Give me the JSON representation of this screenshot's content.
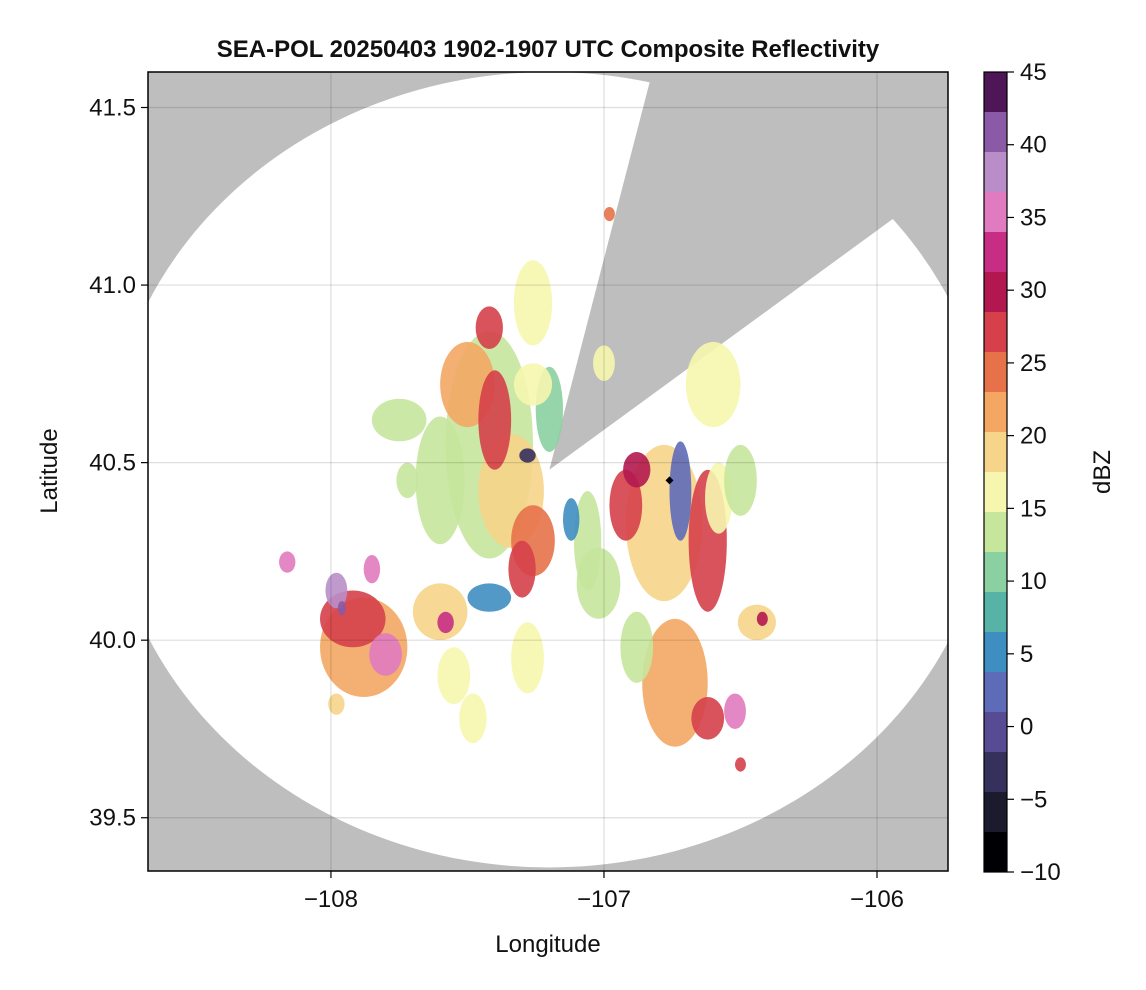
{
  "chart_data": {
    "type": "heatmap",
    "title": "SEA-POL 20250403 1902-1907 UTC Composite Reflectivity",
    "xlabel": "Longitude",
    "ylabel": "Latitude",
    "xlim": [
      -108.67,
      -105.74
    ],
    "ylim": [
      39.35,
      41.6
    ],
    "x_ticks": [
      -108,
      -107,
      -106
    ],
    "x_tick_labels": [
      "−108",
      "−107",
      "−106"
    ],
    "y_ticks": [
      39.5,
      40.0,
      40.5,
      41.0,
      41.5
    ],
    "y_tick_labels": [
      "39.5",
      "40.0",
      "40.5",
      "41.0",
      "41.5"
    ],
    "grid": true,
    "radar": {
      "center": [
        -107.2,
        40.48
      ],
      "range_lat_deg": 1.12,
      "range_lon_deg": 1.62,
      "blocked_sector_from": [
        -106.85,
        41.52
      ],
      "blocked_sector_to": [
        -106.06,
        41.12
      ],
      "marker": [
        -106.76,
        40.45
      ]
    },
    "echo_cells": [
      {
        "lon": -107.42,
        "lat": 40.55,
        "rx": 0.16,
        "ry": 0.32,
        "dbz": 14
      },
      {
        "lon": -107.34,
        "lat": 40.42,
        "rx": 0.12,
        "ry": 0.16,
        "dbz": 18
      },
      {
        "lon": -107.5,
        "lat": 40.72,
        "rx": 0.1,
        "ry": 0.12,
        "dbz": 22
      },
      {
        "lon": -107.4,
        "lat": 40.62,
        "rx": 0.06,
        "ry": 0.14,
        "dbz": 26
      },
      {
        "lon": -107.26,
        "lat": 40.28,
        "rx": 0.08,
        "ry": 0.1,
        "dbz": 24
      },
      {
        "lon": -107.42,
        "lat": 40.12,
        "rx": 0.08,
        "ry": 0.04,
        "dbz": 6
      },
      {
        "lon": -107.3,
        "lat": 40.2,
        "rx": 0.05,
        "ry": 0.08,
        "dbz": 28
      },
      {
        "lon": -107.26,
        "lat": 40.95,
        "rx": 0.07,
        "ry": 0.12,
        "dbz": 15
      },
      {
        "lon": -107.42,
        "lat": 40.88,
        "rx": 0.05,
        "ry": 0.06,
        "dbz": 27
      },
      {
        "lon": -107.6,
        "lat": 40.45,
        "rx": 0.09,
        "ry": 0.18,
        "dbz": 13
      },
      {
        "lon": -107.75,
        "lat": 40.62,
        "rx": 0.1,
        "ry": 0.06,
        "dbz": 12
      },
      {
        "lon": -107.2,
        "lat": 40.65,
        "rx": 0.05,
        "ry": 0.12,
        "dbz": 11
      },
      {
        "lon": -106.78,
        "lat": 40.33,
        "rx": 0.14,
        "ry": 0.22,
        "dbz": 18
      },
      {
        "lon": -106.62,
        "lat": 40.28,
        "rx": 0.07,
        "ry": 0.2,
        "dbz": 26
      },
      {
        "lon": -106.92,
        "lat": 40.38,
        "rx": 0.06,
        "ry": 0.1,
        "dbz": 27
      },
      {
        "lon": -106.88,
        "lat": 40.48,
        "rx": 0.05,
        "ry": 0.05,
        "dbz": 29
      },
      {
        "lon": -106.58,
        "lat": 40.4,
        "rx": 0.05,
        "ry": 0.1,
        "dbz": 16
      },
      {
        "lon": -106.5,
        "lat": 40.45,
        "rx": 0.06,
        "ry": 0.1,
        "dbz": 14
      },
      {
        "lon": -107.06,
        "lat": 40.28,
        "rx": 0.05,
        "ry": 0.14,
        "dbz": 12
      },
      {
        "lon": -107.02,
        "lat": 40.16,
        "rx": 0.08,
        "ry": 0.1,
        "dbz": 13
      },
      {
        "lon": -106.72,
        "lat": 40.42,
        "rx": 0.04,
        "ry": 0.14,
        "dbz": 1
      },
      {
        "lon": -107.12,
        "lat": 40.34,
        "rx": 0.03,
        "ry": 0.06,
        "dbz": 5
      },
      {
        "lon": -107.28,
        "lat": 40.52,
        "rx": 0.03,
        "ry": 0.02,
        "dbz": -3
      },
      {
        "lon": -107.0,
        "lat": 40.78,
        "rx": 0.04,
        "ry": 0.05,
        "dbz": 16
      },
      {
        "lon": -106.74,
        "lat": 39.88,
        "rx": 0.12,
        "ry": 0.18,
        "dbz": 22
      },
      {
        "lon": -106.62,
        "lat": 39.78,
        "rx": 0.06,
        "ry": 0.06,
        "dbz": 26
      },
      {
        "lon": -106.88,
        "lat": 39.98,
        "rx": 0.06,
        "ry": 0.1,
        "dbz": 14
      },
      {
        "lon": -106.52,
        "lat": 39.8,
        "rx": 0.04,
        "ry": 0.05,
        "dbz": 34
      },
      {
        "lon": -106.5,
        "lat": 39.65,
        "rx": 0.02,
        "ry": 0.02,
        "dbz": 26
      },
      {
        "lon": -106.44,
        "lat": 40.05,
        "rx": 0.07,
        "ry": 0.05,
        "dbz": 20
      },
      {
        "lon": -106.42,
        "lat": 40.06,
        "rx": 0.02,
        "ry": 0.02,
        "dbz": 30
      },
      {
        "lon": -106.6,
        "lat": 40.72,
        "rx": 0.1,
        "ry": 0.12,
        "dbz": 15
      },
      {
        "lon": -107.88,
        "lat": 39.98,
        "rx": 0.16,
        "ry": 0.14,
        "dbz": 22
      },
      {
        "lon": -107.92,
        "lat": 40.06,
        "rx": 0.12,
        "ry": 0.08,
        "dbz": 27
      },
      {
        "lon": -107.8,
        "lat": 39.96,
        "rx": 0.06,
        "ry": 0.06,
        "dbz": 34
      },
      {
        "lon": -107.98,
        "lat": 40.14,
        "rx": 0.04,
        "ry": 0.05,
        "dbz": 38
      },
      {
        "lon": -107.85,
        "lat": 40.2,
        "rx": 0.03,
        "ry": 0.04,
        "dbz": 34
      },
      {
        "lon": -108.16,
        "lat": 40.22,
        "rx": 0.03,
        "ry": 0.03,
        "dbz": 34
      },
      {
        "lon": -107.96,
        "lat": 40.09,
        "rx": 0.015,
        "ry": 0.02,
        "dbz": 40
      },
      {
        "lon": -107.6,
        "lat": 40.08,
        "rx": 0.1,
        "ry": 0.08,
        "dbz": 19
      },
      {
        "lon": -107.58,
        "lat": 40.05,
        "rx": 0.03,
        "ry": 0.03,
        "dbz": 32
      },
      {
        "lon": -107.55,
        "lat": 39.9,
        "rx": 0.06,
        "ry": 0.08,
        "dbz": 16
      },
      {
        "lon": -107.48,
        "lat": 39.78,
        "rx": 0.05,
        "ry": 0.07,
        "dbz": 15
      },
      {
        "lon": -107.28,
        "lat": 39.95,
        "rx": 0.06,
        "ry": 0.1,
        "dbz": 15
      },
      {
        "lon": -107.26,
        "lat": 40.72,
        "rx": 0.07,
        "ry": 0.06,
        "dbz": 17
      },
      {
        "lon": -107.72,
        "lat": 40.45,
        "rx": 0.04,
        "ry": 0.05,
        "dbz": 12
      },
      {
        "lon": -107.98,
        "lat": 39.82,
        "rx": 0.03,
        "ry": 0.03,
        "dbz": 20
      },
      {
        "lon": -106.98,
        "lat": 41.2,
        "rx": 0.02,
        "ry": 0.02,
        "dbz": 24
      }
    ]
  },
  "colorbar": {
    "label": "dBZ",
    "vmin": -10,
    "vmax": 45,
    "ticks": [
      -10,
      -5,
      0,
      5,
      10,
      15,
      20,
      25,
      30,
      35,
      40,
      45
    ],
    "tick_labels": [
      "−10",
      "−5",
      "0",
      "5",
      "10",
      "15",
      "20",
      "25",
      "30",
      "35",
      "40",
      "45"
    ],
    "colors": [
      "#000004",
      "#1c1b2e",
      "#36305c",
      "#574c94",
      "#5e6bb8",
      "#3f8ec1",
      "#57b3a6",
      "#8bd0a0",
      "#c6e69c",
      "#f6f6ae",
      "#f6d48a",
      "#f3a763",
      "#e7724a",
      "#d5404a",
      "#b2184f",
      "#c72e83",
      "#e07bbf",
      "#b98ec8",
      "#8a5aa6",
      "#4e1656"
    ]
  }
}
